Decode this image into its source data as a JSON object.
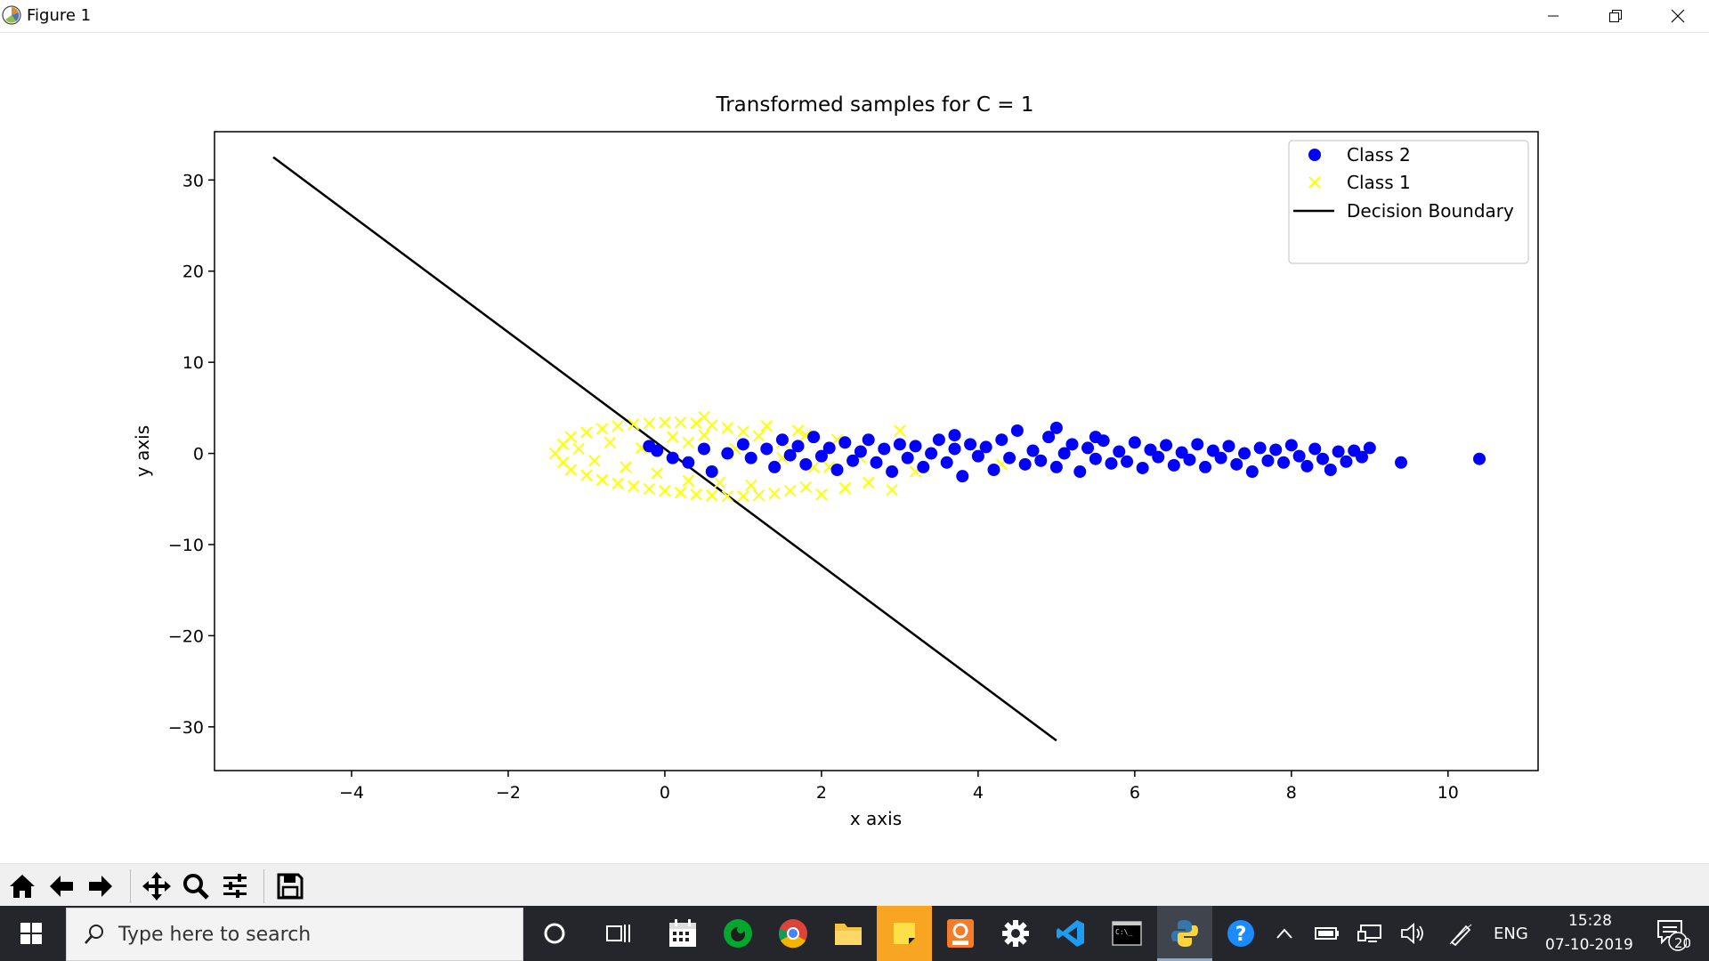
{
  "window": {
    "title": "Figure 1"
  },
  "chart_data": {
    "type": "scatter",
    "title": "Transformed samples for C = 1",
    "xlabel": "x axis",
    "ylabel": "y axis",
    "xlim": [
      -5.75,
      11.15
    ],
    "ylim": [
      -34.8,
      35.3
    ],
    "xticks": [
      -4,
      -2,
      0,
      2,
      4,
      6,
      8,
      10
    ],
    "yticks": [
      30,
      20,
      10,
      0,
      -10,
      -20,
      -30
    ],
    "xtick_labels": [
      "−4",
      "−2",
      "0",
      "2",
      "4",
      "6",
      "8",
      "10"
    ],
    "ytick_labels": [
      "30",
      "20",
      "10",
      "0",
      "−10",
      "−20",
      "−30"
    ],
    "grid": false,
    "legend_position": "top-right",
    "series": [
      {
        "name": "Class 2",
        "marker": "circle",
        "color": "#0000ff",
        "points": [
          [
            -0.2,
            0.8
          ],
          [
            -0.1,
            0.3
          ],
          [
            0.1,
            -0.5
          ],
          [
            0.3,
            -1.0
          ],
          [
            0.5,
            0.5
          ],
          [
            0.6,
            -2.0
          ],
          [
            0.8,
            0.0
          ],
          [
            1.0,
            1.0
          ],
          [
            1.1,
            -0.5
          ],
          [
            1.3,
            0.5
          ],
          [
            1.4,
            -1.5
          ],
          [
            1.5,
            1.5
          ],
          [
            1.6,
            -0.2
          ],
          [
            1.7,
            0.8
          ],
          [
            1.8,
            -1.2
          ],
          [
            1.9,
            1.8
          ],
          [
            2.0,
            -0.3
          ],
          [
            2.1,
            0.6
          ],
          [
            2.2,
            -1.8
          ],
          [
            2.3,
            1.2
          ],
          [
            2.4,
            -0.8
          ],
          [
            2.5,
            0.2
          ],
          [
            2.6,
            1.5
          ],
          [
            2.7,
            -1.0
          ],
          [
            2.8,
            0.5
          ],
          [
            2.9,
            -2.0
          ],
          [
            3.0,
            1.0
          ],
          [
            3.1,
            -0.5
          ],
          [
            3.2,
            0.8
          ],
          [
            3.3,
            -1.5
          ],
          [
            3.4,
            0.0
          ],
          [
            3.5,
            1.5
          ],
          [
            3.6,
            -1.0
          ],
          [
            3.7,
            0.5
          ],
          [
            3.8,
            -2.5
          ],
          [
            3.9,
            1.0
          ],
          [
            4.0,
            -0.3
          ],
          [
            4.1,
            0.7
          ],
          [
            4.2,
            -1.8
          ],
          [
            4.3,
            1.5
          ],
          [
            4.4,
            -0.5
          ],
          [
            4.5,
            2.5
          ],
          [
            4.6,
            -1.2
          ],
          [
            4.7,
            0.3
          ],
          [
            4.8,
            -0.8
          ],
          [
            4.9,
            1.8
          ],
          [
            5.0,
            -1.5
          ],
          [
            5.1,
            0.0
          ],
          [
            5.2,
            1.0
          ],
          [
            5.3,
            -2.0
          ],
          [
            5.4,
            0.6
          ],
          [
            5.5,
            -0.6
          ],
          [
            5.6,
            1.4
          ],
          [
            5.7,
            -1.1
          ],
          [
            5.8,
            0.2
          ],
          [
            5.9,
            -0.9
          ],
          [
            6.0,
            1.2
          ],
          [
            6.1,
            -1.6
          ],
          [
            6.2,
            0.4
          ],
          [
            6.3,
            -0.4
          ],
          [
            6.4,
            0.9
          ],
          [
            6.5,
            -1.3
          ],
          [
            6.6,
            0.1
          ],
          [
            6.7,
            -0.7
          ],
          [
            6.8,
            1.0
          ],
          [
            6.9,
            -1.5
          ],
          [
            7.0,
            0.3
          ],
          [
            7.1,
            -0.5
          ],
          [
            7.2,
            0.8
          ],
          [
            7.3,
            -1.2
          ],
          [
            7.4,
            0.0
          ],
          [
            7.5,
            -2.0
          ],
          [
            7.6,
            0.6
          ],
          [
            7.7,
            -0.8
          ],
          [
            7.8,
            0.4
          ],
          [
            7.9,
            -1.0
          ],
          [
            8.0,
            0.9
          ],
          [
            8.1,
            -0.3
          ],
          [
            8.2,
            -1.4
          ],
          [
            8.3,
            0.5
          ],
          [
            8.4,
            -0.6
          ],
          [
            8.5,
            -1.8
          ],
          [
            8.6,
            0.2
          ],
          [
            8.7,
            -0.9
          ],
          [
            8.8,
            0.3
          ],
          [
            8.9,
            -0.4
          ],
          [
            9.0,
            0.6
          ],
          [
            9.4,
            -1.0
          ],
          [
            10.4,
            -0.6
          ],
          [
            5.0,
            2.8
          ],
          [
            5.5,
            1.8
          ],
          [
            3.7,
            2.0
          ]
        ]
      },
      {
        "name": "Class 1",
        "marker": "x",
        "color": "#ffff00",
        "points": [
          [
            -1.4,
            0.0
          ],
          [
            -1.3,
            1.0
          ],
          [
            -1.3,
            -1.0
          ],
          [
            -1.2,
            1.8
          ],
          [
            -1.2,
            -1.8
          ],
          [
            -1.1,
            0.5
          ],
          [
            -1.0,
            2.3
          ],
          [
            -1.0,
            -2.4
          ],
          [
            -0.9,
            -0.8
          ],
          [
            -0.8,
            2.7
          ],
          [
            -0.8,
            -2.9
          ],
          [
            -0.7,
            1.2
          ],
          [
            -0.6,
            3.0
          ],
          [
            -0.6,
            -3.3
          ],
          [
            -0.5,
            -1.5
          ],
          [
            -0.4,
            3.2
          ],
          [
            -0.4,
            -3.6
          ],
          [
            -0.3,
            0.6
          ],
          [
            -0.2,
            3.3
          ],
          [
            -0.2,
            -3.9
          ],
          [
            -0.1,
            -2.2
          ],
          [
            0.0,
            3.4
          ],
          [
            0.0,
            -4.1
          ],
          [
            0.1,
            1.8
          ],
          [
            0.2,
            3.4
          ],
          [
            0.2,
            -4.3
          ],
          [
            0.3,
            -3.0
          ],
          [
            0.4,
            3.3
          ],
          [
            0.4,
            -4.5
          ],
          [
            0.5,
            2.0
          ],
          [
            0.6,
            3.1
          ],
          [
            0.6,
            -4.6
          ],
          [
            0.7,
            -3.2
          ],
          [
            0.8,
            2.8
          ],
          [
            0.8,
            -4.7
          ],
          [
            1.0,
            2.4
          ],
          [
            1.0,
            -4.7
          ],
          [
            1.1,
            -3.5
          ],
          [
            1.2,
            1.9
          ],
          [
            1.2,
            -4.6
          ],
          [
            1.3,
            3.0
          ],
          [
            1.4,
            -4.4
          ],
          [
            1.5,
            1.2
          ],
          [
            1.6,
            -4.1
          ],
          [
            1.7,
            2.5
          ],
          [
            1.8,
            -3.7
          ],
          [
            1.9,
            -1.5
          ],
          [
            2.0,
            -4.5
          ],
          [
            2.2,
            1.5
          ],
          [
            2.3,
            -3.8
          ],
          [
            2.5,
            -0.5
          ],
          [
            2.6,
            -3.2
          ],
          [
            2.9,
            -4.0
          ],
          [
            3.0,
            2.5
          ],
          [
            3.2,
            -2.0
          ],
          [
            0.3,
            1.2
          ],
          [
            0.9,
            0.5
          ],
          [
            1.5,
            -0.5
          ],
          [
            4.3,
            -1.2
          ],
          [
            2.1,
            -1.5
          ],
          [
            1.8,
            2.0
          ],
          [
            0.5,
            4.0
          ]
        ]
      },
      {
        "name": "Decision Boundary",
        "type": "line",
        "color": "#000000",
        "x": [
          -5.0,
          5.0
        ],
        "y": [
          32.5,
          -31.5
        ]
      }
    ]
  },
  "toolbar": {
    "buttons": [
      {
        "name": "home-icon",
        "title": "Home"
      },
      {
        "name": "back-icon",
        "title": "Back"
      },
      {
        "name": "forward-icon",
        "title": "Forward"
      },
      {
        "name": "pan-icon",
        "title": "Pan"
      },
      {
        "name": "zoom-icon",
        "title": "Zoom"
      },
      {
        "name": "configure-subplots-icon",
        "title": "Subplots"
      },
      {
        "name": "save-icon",
        "title": "Save"
      }
    ]
  },
  "taskbar": {
    "search_placeholder": "Type here to search",
    "language": "ENG",
    "time": "15:28",
    "date": "07-10-2019",
    "notification_count": "20"
  }
}
